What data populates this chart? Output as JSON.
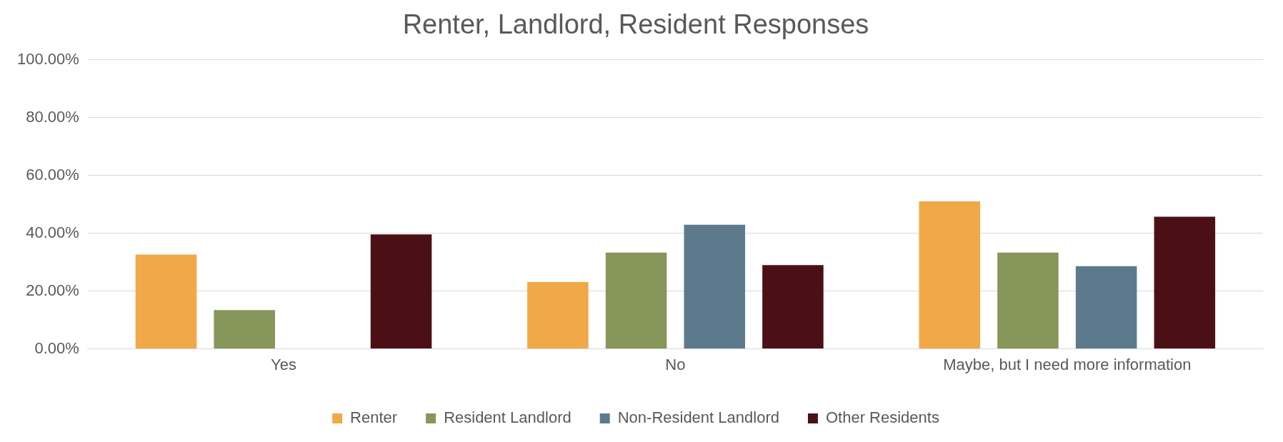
{
  "chart_data": {
    "type": "bar",
    "title": "Renter, Landlord, Resident Responses",
    "categories": [
      "Yes",
      "No",
      "Maybe, but I need more information"
    ],
    "series": [
      {
        "name": "Renter",
        "color": "#f0a848",
        "values": [
          32.6,
          23.1,
          51.0
        ]
      },
      {
        "name": "Resident Landlord",
        "color": "#87965a",
        "values": [
          13.4,
          33.3,
          33.3
        ]
      },
      {
        "name": "Non-Resident Landlord",
        "color": "#5d7a8c",
        "values": [
          0,
          42.9,
          28.6
        ]
      },
      {
        "name": "Other Residents",
        "color": "#4b1016",
        "values": [
          39.6,
          29.0,
          45.7
        ]
      }
    ],
    "ylim": [
      0,
      100
    ],
    "yticks": [
      {
        "value": 0,
        "label": "0.00%"
      },
      {
        "value": 20,
        "label": "20.00%"
      },
      {
        "value": 40,
        "label": "40.00%"
      },
      {
        "value": 60,
        "label": "60.00%"
      },
      {
        "value": 80,
        "label": "80.00%"
      },
      {
        "value": 100,
        "label": "100.00%"
      }
    ],
    "grid": "y",
    "legend": "bottom"
  }
}
